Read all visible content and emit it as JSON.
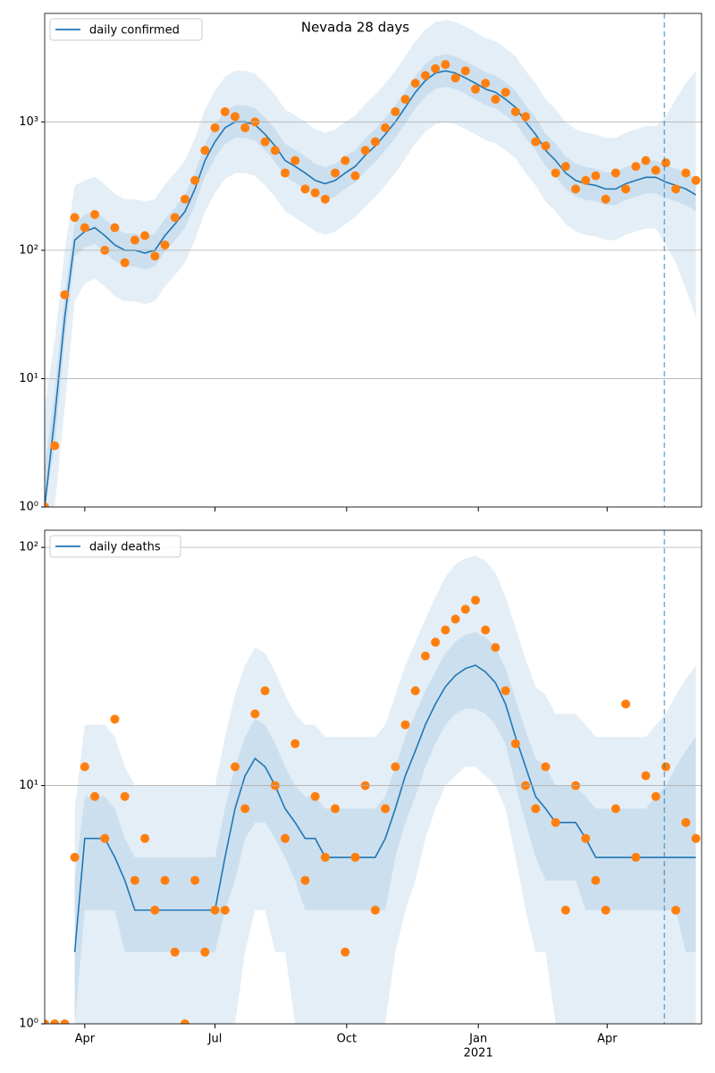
{
  "chart_data": [
    {
      "type": "line",
      "title": "Nevada 28 days",
      "legend": "upper left",
      "log_scale": true,
      "grid": true,
      "xlim": [
        0,
        459
      ],
      "ylim": [
        1,
        7000
      ],
      "yticks": [
        {
          "value": 1,
          "label": "10⁰"
        },
        {
          "value": 10,
          "label": "10¹"
        },
        {
          "value": 100,
          "label": "10²"
        },
        {
          "value": 1000,
          "label": "10³"
        }
      ],
      "vline": 433,
      "x": [
        0,
        7,
        14,
        21,
        28,
        35,
        42,
        49,
        56,
        63,
        70,
        77,
        84,
        91,
        98,
        105,
        112,
        119,
        126,
        133,
        140,
        147,
        154,
        161,
        168,
        175,
        182,
        189,
        196,
        203,
        210,
        217,
        224,
        231,
        238,
        245,
        252,
        259,
        266,
        273,
        280,
        287,
        294,
        301,
        308,
        315,
        322,
        329,
        336,
        343,
        350,
        357,
        364,
        371,
        378,
        385,
        392,
        399,
        406,
        413,
        420,
        427,
        434,
        441,
        448,
        455
      ],
      "series": [
        {
          "name": "daily confirmed",
          "color": "#1f77b4",
          "values": [
            1,
            5,
            30,
            120,
            140,
            150,
            130,
            110,
            100,
            100,
            95,
            100,
            130,
            160,
            200,
            300,
            500,
            700,
            900,
            1000,
            1000,
            950,
            800,
            650,
            500,
            450,
            400,
            350,
            330,
            350,
            400,
            450,
            550,
            650,
            800,
            1000,
            1300,
            1700,
            2100,
            2400,
            2500,
            2400,
            2200,
            2000,
            1800,
            1700,
            1500,
            1300,
            1000,
            800,
            600,
            500,
            400,
            350,
            330,
            320,
            300,
            300,
            330,
            350,
            370,
            370,
            340,
            320,
            300,
            270
          ]
        }
      ],
      "observed": {
        "color": "#ff7f0e",
        "values": [
          1,
          3,
          45,
          180,
          150,
          190,
          100,
          150,
          80,
          120,
          130,
          90,
          110,
          180,
          250,
          350,
          600,
          900,
          1200,
          1100,
          900,
          1000,
          700,
          600,
          400,
          500,
          300,
          280,
          250,
          400,
          500,
          380,
          600,
          700,
          900,
          1200,
          1500,
          2000,
          2300,
          2600,
          2800,
          2200,
          2500,
          1800,
          2000,
          1500,
          1700,
          1200,
          1100,
          700,
          650,
          400,
          450,
          300,
          350,
          380,
          250,
          400,
          300,
          450,
          500,
          420,
          480,
          300,
          400,
          350
        ]
      },
      "bands": [
        {
          "color": "#1f77b4",
          "lower": [
            1,
            1,
            6,
            40,
            55,
            60,
            52,
            44,
            40,
            40,
            38,
            40,
            52,
            64,
            80,
            120,
            200,
            280,
            360,
            400,
            400,
            380,
            320,
            260,
            200,
            180,
            160,
            140,
            132,
            140,
            160,
            180,
            220,
            260,
            320,
            400,
            520,
            680,
            840,
            960,
            1000,
            960,
            880,
            800,
            720,
            680,
            600,
            520,
            400,
            320,
            240,
            200,
            160,
            140,
            132,
            128,
            120,
            120,
            132,
            140,
            148,
            148,
            110,
            80,
            50,
            30
          ],
          "upper": [
            6,
            20,
            100,
            320,
            350,
            375,
            325,
            275,
            250,
            250,
            240,
            250,
            325,
            400,
            500,
            750,
            1250,
            1750,
            2250,
            2500,
            2500,
            2375,
            2000,
            1625,
            1250,
            1125,
            1000,
            875,
            825,
            875,
            1000,
            1125,
            1375,
            1625,
            2000,
            2500,
            3250,
            4250,
            5250,
            6000,
            6250,
            6000,
            5500,
            5000,
            4500,
            4250,
            3750,
            3250,
            2500,
            2000,
            1500,
            1250,
            1000,
            875,
            825,
            800,
            750,
            750,
            825,
            875,
            925,
            925,
            1100,
            1500,
            2000,
            2500
          ]
        },
        {
          "color": "#1f77b4",
          "lower": [
            1,
            3,
            20,
            90,
            105,
            112,
            97,
            82,
            75,
            75,
            71,
            75,
            97,
            120,
            150,
            225,
            375,
            525,
            675,
            750,
            750,
            712,
            600,
            487,
            375,
            337,
            300,
            262,
            247,
            262,
            300,
            337,
            412,
            487,
            600,
            750,
            975,
            1275,
            1575,
            1800,
            1875,
            1800,
            1650,
            1500,
            1350,
            1275,
            1125,
            975,
            750,
            600,
            450,
            375,
            300,
            262,
            247,
            240,
            225,
            225,
            247,
            262,
            277,
            277,
            255,
            240,
            225,
            202
          ],
          "upper": [
            2,
            8,
            45,
            160,
            190,
            200,
            175,
            150,
            135,
            135,
            128,
            135,
            175,
            215,
            270,
            405,
            675,
            945,
            1215,
            1350,
            1350,
            1280,
            1080,
            877,
            675,
            607,
            540,
            472,
            445,
            472,
            540,
            607,
            742,
            877,
            1080,
            1350,
            1755,
            2295,
            2835,
            3240,
            3375,
            3240,
            2970,
            2700,
            2430,
            2295,
            2025,
            1755,
            1350,
            1080,
            810,
            675,
            540,
            472,
            445,
            432,
            405,
            405,
            445,
            472,
            500,
            500,
            460,
            432,
            405,
            365
          ]
        }
      ]
    },
    {
      "type": "line",
      "legend": "upper left",
      "log_scale": true,
      "grid": true,
      "xlim": [
        0,
        459
      ],
      "ylim": [
        1,
        118
      ],
      "yticks": [
        {
          "value": 1,
          "label": "10⁰"
        },
        {
          "value": 10,
          "label": "10¹"
        },
        {
          "value": 100,
          "label": "10²"
        }
      ],
      "xticks": [
        {
          "value": 28,
          "label": "Apr"
        },
        {
          "value": 119,
          "label": "Jul"
        },
        {
          "value": 211,
          "label": "Oct"
        },
        {
          "value": 303,
          "label": "Jan"
        },
        {
          "value": 393,
          "label": "Apr"
        }
      ],
      "x_sublabel": "2021",
      "vline": 433,
      "x": [
        0,
        7,
        14,
        21,
        28,
        35,
        42,
        49,
        56,
        63,
        70,
        77,
        84,
        91,
        98,
        105,
        112,
        119,
        126,
        133,
        140,
        147,
        154,
        161,
        168,
        175,
        182,
        189,
        196,
        203,
        210,
        217,
        224,
        231,
        238,
        245,
        252,
        259,
        266,
        273,
        280,
        287,
        294,
        301,
        308,
        315,
        322,
        329,
        336,
        343,
        350,
        357,
        364,
        371,
        378,
        385,
        392,
        399,
        406,
        413,
        420,
        427,
        434,
        441,
        448,
        455
      ],
      "series": [
        {
          "name": "daily deaths",
          "color": "#1f77b4",
          "values": [
            null,
            null,
            null,
            2,
            6,
            6,
            6,
            5,
            4,
            3,
            3,
            3,
            3,
            3,
            3,
            3,
            3,
            3,
            5,
            8,
            11,
            13,
            12,
            10,
            8,
            7,
            6,
            6,
            5,
            5,
            5,
            5,
            5,
            5,
            6,
            8,
            11,
            14,
            18,
            22,
            26,
            29,
            31,
            32,
            30,
            27,
            22,
            16,
            12,
            9,
            8,
            7,
            7,
            7,
            6,
            5,
            5,
            5,
            5,
            5,
            5,
            5,
            5,
            5,
            5,
            5
          ]
        }
      ],
      "observed": {
        "color": "#ff7f0e",
        "values": [
          1,
          1,
          1,
          5,
          12,
          9,
          6,
          19,
          9,
          4,
          6,
          3,
          4,
          2,
          1,
          4,
          2,
          3,
          3,
          12,
          8,
          20,
          25,
          10,
          6,
          15,
          4,
          9,
          5,
          8,
          2,
          5,
          10,
          3,
          8,
          12,
          18,
          25,
          35,
          40,
          45,
          50,
          55,
          60,
          45,
          38,
          25,
          15,
          10,
          8,
          12,
          7,
          3,
          10,
          6,
          4,
          3,
          8,
          22,
          5,
          11,
          9,
          12,
          3,
          7,
          6
        ]
      },
      "bands": [
        {
          "color": "#1f77b4",
          "lower": [
            null,
            null,
            null,
            1,
            1,
            1,
            1,
            1,
            1,
            1,
            1,
            1,
            1,
            1,
            1,
            1,
            1,
            1,
            1,
            1,
            2,
            3,
            3,
            2,
            2,
            1,
            1,
            1,
            1,
            1,
            1,
            1,
            1,
            1,
            1,
            2,
            3,
            4,
            6,
            8,
            10,
            11,
            12,
            12,
            11,
            10,
            8,
            5,
            3,
            2,
            2,
            1,
            1,
            1,
            1,
            1,
            1,
            1,
            1,
            1,
            1,
            1,
            1,
            1,
            1,
            1
          ],
          "upper": [
            null,
            null,
            null,
            8,
            18,
            18,
            18,
            16,
            12,
            10,
            10,
            10,
            10,
            10,
            10,
            10,
            10,
            10,
            16,
            24,
            32,
            38,
            36,
            30,
            24,
            20,
            18,
            18,
            16,
            16,
            16,
            16,
            16,
            16,
            18,
            24,
            32,
            40,
            50,
            62,
            75,
            85,
            90,
            92,
            88,
            78,
            62,
            46,
            34,
            26,
            24,
            20,
            20,
            20,
            18,
            16,
            16,
            16,
            16,
            16,
            16,
            18,
            20,
            24,
            28,
            32
          ]
        },
        {
          "color": "#1f77b4",
          "lower": [
            null,
            null,
            null,
            1,
            3,
            3,
            3,
            3,
            2,
            2,
            2,
            2,
            2,
            2,
            2,
            2,
            2,
            2,
            3,
            4,
            6,
            7,
            7,
            6,
            5,
            4,
            3,
            3,
            3,
            3,
            3,
            3,
            3,
            3,
            3,
            5,
            7,
            9,
            12,
            15,
            18,
            20,
            21,
            21,
            20,
            18,
            15,
            10,
            7,
            5,
            4,
            4,
            4,
            4,
            3,
            3,
            3,
            3,
            3,
            3,
            3,
            3,
            3,
            3,
            2,
            2
          ],
          "upper": [
            null,
            null,
            null,
            4,
            9,
            9,
            9,
            8,
            6,
            5,
            5,
            5,
            5,
            5,
            5,
            5,
            5,
            5,
            8,
            12,
            16,
            19,
            18,
            15,
            12,
            10,
            9,
            9,
            8,
            8,
            8,
            8,
            8,
            8,
            9,
            12,
            16,
            20,
            25,
            30,
            36,
            40,
            43,
            44,
            42,
            38,
            31,
            23,
            17,
            13,
            12,
            10,
            10,
            10,
            9,
            8,
            8,
            8,
            8,
            8,
            8,
            9,
            10,
            12,
            14,
            16
          ]
        }
      ]
    }
  ]
}
